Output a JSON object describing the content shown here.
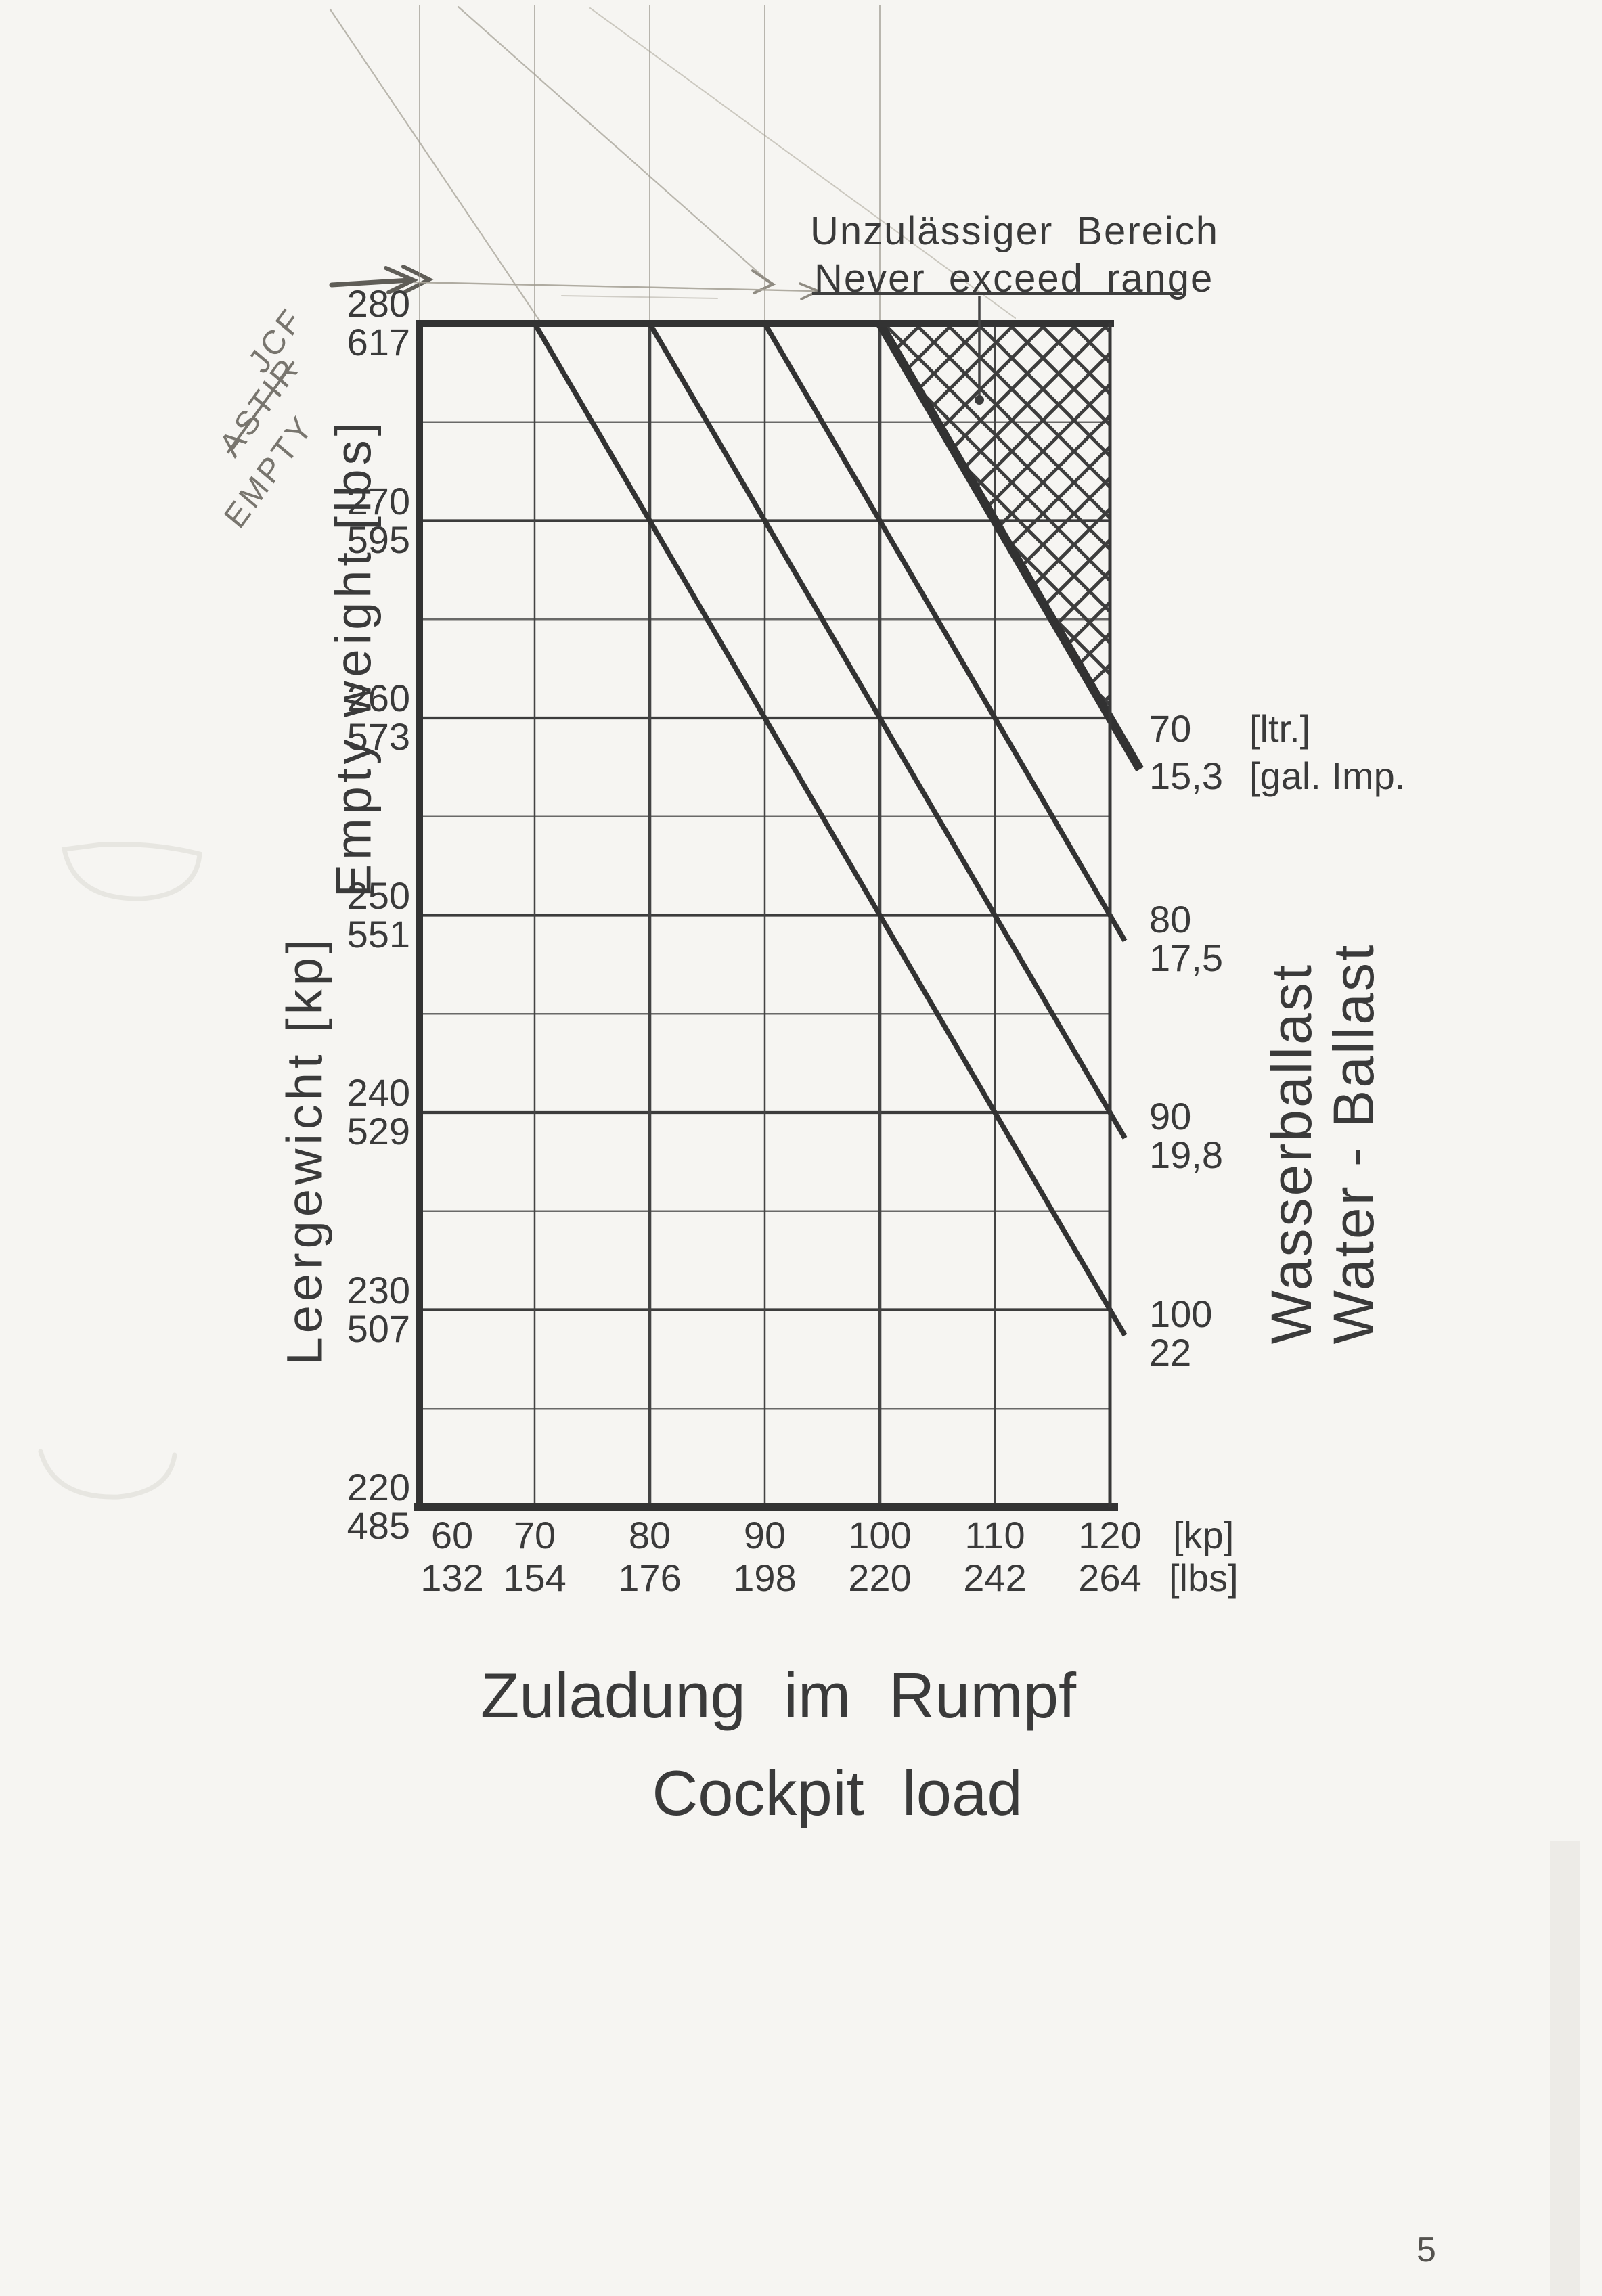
{
  "page": {
    "number": "5"
  },
  "handwriting": {
    "line1": "JCF",
    "line2": "ASTIR",
    "line3": "EMPTY"
  },
  "chart_data": {
    "type": "line",
    "title": {
      "de": "Unzulässiger Bereich",
      "en": "Never exceed range"
    },
    "x_axis": {
      "title_de": "Zuladung im Rumpf",
      "title_en": "Cockpit load",
      "unit_primary": "[kp]",
      "unit_secondary": "[lbs]",
      "range_kp": [
        60,
        120
      ],
      "ticks": [
        {
          "kp": 60,
          "label_kp": "60",
          "label_lbs": "132"
        },
        {
          "kp": 70,
          "label_kp": "70",
          "label_lbs": "154"
        },
        {
          "kp": 80,
          "label_kp": "80",
          "label_lbs": "176"
        },
        {
          "kp": 90,
          "label_kp": "90",
          "label_lbs": "198"
        },
        {
          "kp": 100,
          "label_kp": "100",
          "label_lbs": "220"
        },
        {
          "kp": 110,
          "label_kp": "110",
          "label_lbs": "242"
        },
        {
          "kp": 120,
          "label_kp": "120",
          "label_lbs": "264"
        }
      ]
    },
    "y_axis": {
      "title_de": "Leergewicht [kp]",
      "title_en": "Empty weight [lbs]",
      "range_kp": [
        220,
        280
      ],
      "ticks": [
        {
          "kp": 280,
          "label_kp": "280",
          "label_lbs": "617"
        },
        {
          "kp": 270,
          "label_kp": "270",
          "label_lbs": "595"
        },
        {
          "kp": 260,
          "label_kp": "260",
          "label_lbs": "573"
        },
        {
          "kp": 250,
          "label_kp": "250",
          "label_lbs": "551"
        },
        {
          "kp": 240,
          "label_kp": "240",
          "label_lbs": "529"
        },
        {
          "kp": 230,
          "label_kp": "230",
          "label_lbs": "507"
        },
        {
          "kp": 220,
          "label_kp": "220",
          "label_lbs": "485"
        }
      ],
      "minor_kp": [
        275,
        265,
        255,
        245,
        235,
        225
      ]
    },
    "right_axis": {
      "title_de": "Wasserballast",
      "title_en": "Water - Ballast"
    },
    "series": [
      {
        "name": "water-ballast-70",
        "liters": "70",
        "liters_unit": "[ltr.]",
        "gallons": "15,3",
        "gallons_unit": "[gal. Imp.",
        "line_kp": [
          [
            100,
            280
          ],
          [
            120,
            260
          ]
        ],
        "thick": true
      },
      {
        "name": "water-ballast-80",
        "liters": "80",
        "gallons": "17,5",
        "line_kp": [
          [
            90,
            280
          ],
          [
            120,
            250
          ]
        ],
        "thick": false
      },
      {
        "name": "water-ballast-90",
        "liters": "90",
        "gallons": "19,8",
        "line_kp": [
          [
            80,
            280
          ],
          [
            120,
            240
          ]
        ],
        "thick": false
      },
      {
        "name": "water-ballast-100",
        "liters": "100",
        "gallons": "22",
        "line_kp": [
          [
            70,
            280
          ],
          [
            120,
            230
          ]
        ],
        "thick": false
      }
    ],
    "never_exceed_region_kp": [
      [
        100,
        280
      ],
      [
        120,
        280
      ],
      [
        120,
        260
      ]
    ],
    "grid": true,
    "legend_position": "right",
    "ink_color": "#343434",
    "pencil_color": "#a8a49b"
  }
}
